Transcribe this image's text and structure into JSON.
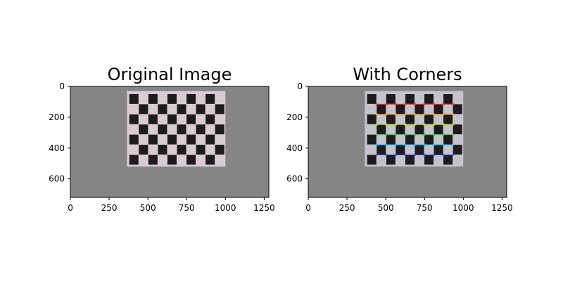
{
  "panels": [
    {
      "title": "Original Image",
      "x_ticks": [
        "0",
        "250",
        "500",
        "750",
        "1000",
        "1250"
      ],
      "y_ticks": [
        "0",
        "200",
        "400",
        "600"
      ],
      "has_corners": false
    },
    {
      "title": "With Corners",
      "x_ticks": [
        "0",
        "250",
        "500",
        "750",
        "1000",
        "1250"
      ],
      "y_ticks": [
        "0",
        "200",
        "400",
        "600"
      ],
      "has_corners": true
    }
  ],
  "colors": {
    "background_gray": "#858585",
    "board_tint": "#d8ccd2",
    "square_dark": "#1e1a1e",
    "corner_rows": [
      "#ff3030",
      "#ff9a00",
      "#b6e300",
      "#20d040",
      "#00c0ff",
      "#3050ff",
      "#d030ff",
      "#ff30a0"
    ]
  }
}
